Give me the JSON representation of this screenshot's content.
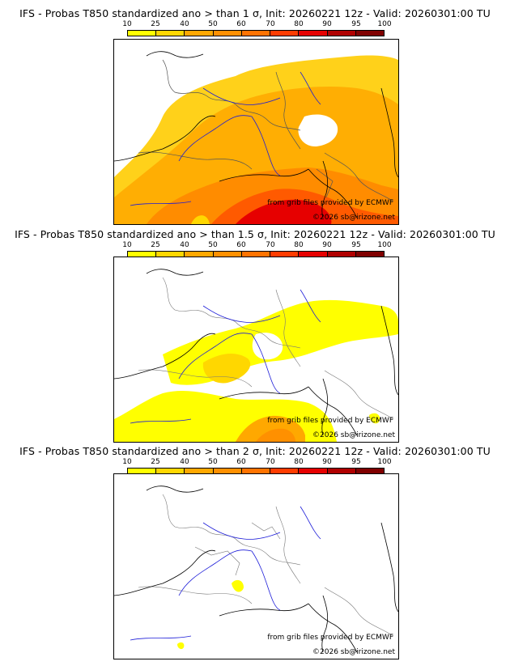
{
  "legend": {
    "ticks": [
      "10",
      "25",
      "40",
      "50",
      "60",
      "70",
      "80",
      "90",
      "95",
      "100"
    ],
    "colors": [
      "#ffff00",
      "#ffd700",
      "#ffa800",
      "#ff9000",
      "#ff7300",
      "#ff3c00",
      "#e60000",
      "#b00000",
      "#800000"
    ]
  },
  "panels": [
    {
      "title": "IFS - Probas T850  standardized ano > than 1 σ, Init: 20260221 12z - Valid: 20260301:00 TU",
      "source_note": "from grib files provided by ECMWF",
      "copyright": "©2026 sb@irizone.net"
    },
    {
      "title": "IFS - Probas T850  standardized ano > than 1.5 σ, Init: 20260221 12z - Valid: 20260301:00 TU",
      "source_note": "from grib files provided by ECMWF",
      "copyright": "©2026 sb@irizone.net"
    },
    {
      "title": "IFS - Probas T850  standardized ano > than 2 σ, Init: 20260221 12z - Valid: 20260301:00 TU",
      "source_note": "from grib files provided by ECMWF",
      "copyright": "©2026 sb@irizone.net"
    }
  ]
}
